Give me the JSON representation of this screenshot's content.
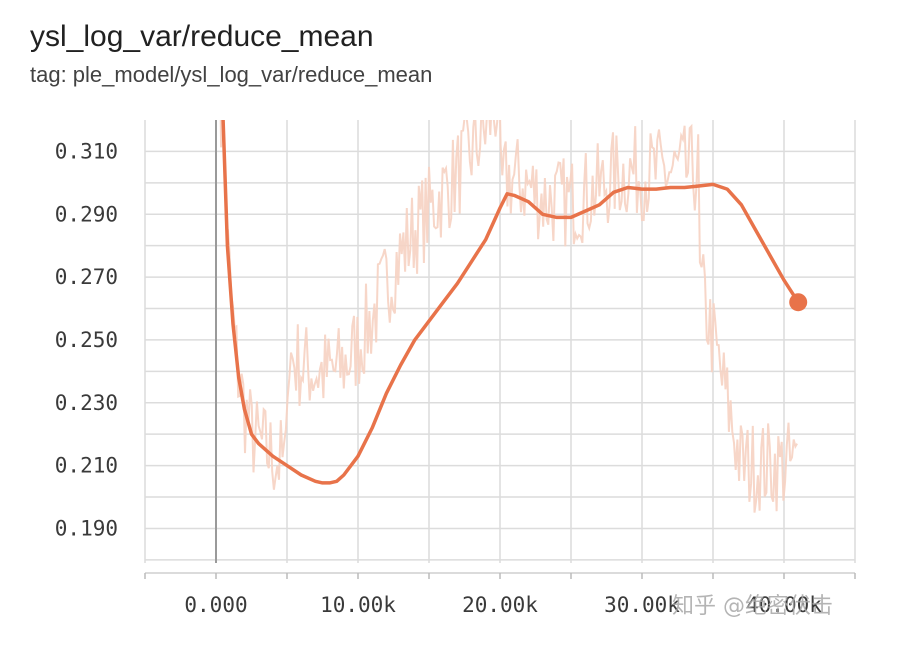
{
  "chart_data": {
    "type": "line",
    "title": "ysl_log_var/reduce_mean",
    "subtitle": "tag: ple_model/ysl_log_var/reduce_mean",
    "xlabel": "",
    "ylabel": "",
    "xlim": [
      -5000,
      45000
    ],
    "ylim": [
      0.179,
      0.32
    ],
    "x_ticks": [
      0,
      10000,
      20000,
      30000,
      40000
    ],
    "x_tick_labels": [
      "0.000",
      "10.00k",
      "20.00k",
      "30.00k",
      "40.00k"
    ],
    "y_ticks": [
      0.19,
      0.21,
      0.23,
      0.25,
      0.27,
      0.29,
      0.31
    ],
    "y_tick_labels": [
      "0.190",
      "0.210",
      "0.230",
      "0.250",
      "0.270",
      "0.290",
      "0.310"
    ],
    "grid": true,
    "series": [
      {
        "color": "#e8734a",
        "x": [
          500,
          800,
          1200,
          1600,
          2000,
          2500,
          3000,
          4000,
          5000,
          6000,
          7000,
          7500,
          8000,
          8500,
          9000,
          10000,
          11000,
          12000,
          13000,
          14000,
          15000,
          16000,
          17000,
          18000,
          19000,
          20000,
          20500,
          21000,
          22000,
          23000,
          24000,
          25000,
          26000,
          27000,
          28000,
          29000,
          30000,
          31000,
          32000,
          33000,
          34000,
          35000,
          36000,
          37000,
          38000,
          39000,
          40000,
          41000
        ],
        "y": [
          0.32,
          0.28,
          0.255,
          0.238,
          0.228,
          0.22,
          0.217,
          0.213,
          0.21,
          0.207,
          0.205,
          0.2045,
          0.2045,
          0.205,
          0.207,
          0.213,
          0.222,
          0.233,
          0.242,
          0.25,
          0.256,
          0.262,
          0.268,
          0.275,
          0.282,
          0.292,
          0.2965,
          0.296,
          0.294,
          0.29,
          0.289,
          0.289,
          0.291,
          0.293,
          0.297,
          0.2985,
          0.298,
          0.298,
          0.2985,
          0.2985,
          0.299,
          0.2995,
          0.298,
          0.293,
          0.285,
          0.277,
          0.269,
          0.262
        ]
      }
    ],
    "raw_series_color": "#f6d2c2",
    "current_point": {
      "x": 41000,
      "y": 0.262
    }
  },
  "watermark": "知乎 @绝密伏击"
}
